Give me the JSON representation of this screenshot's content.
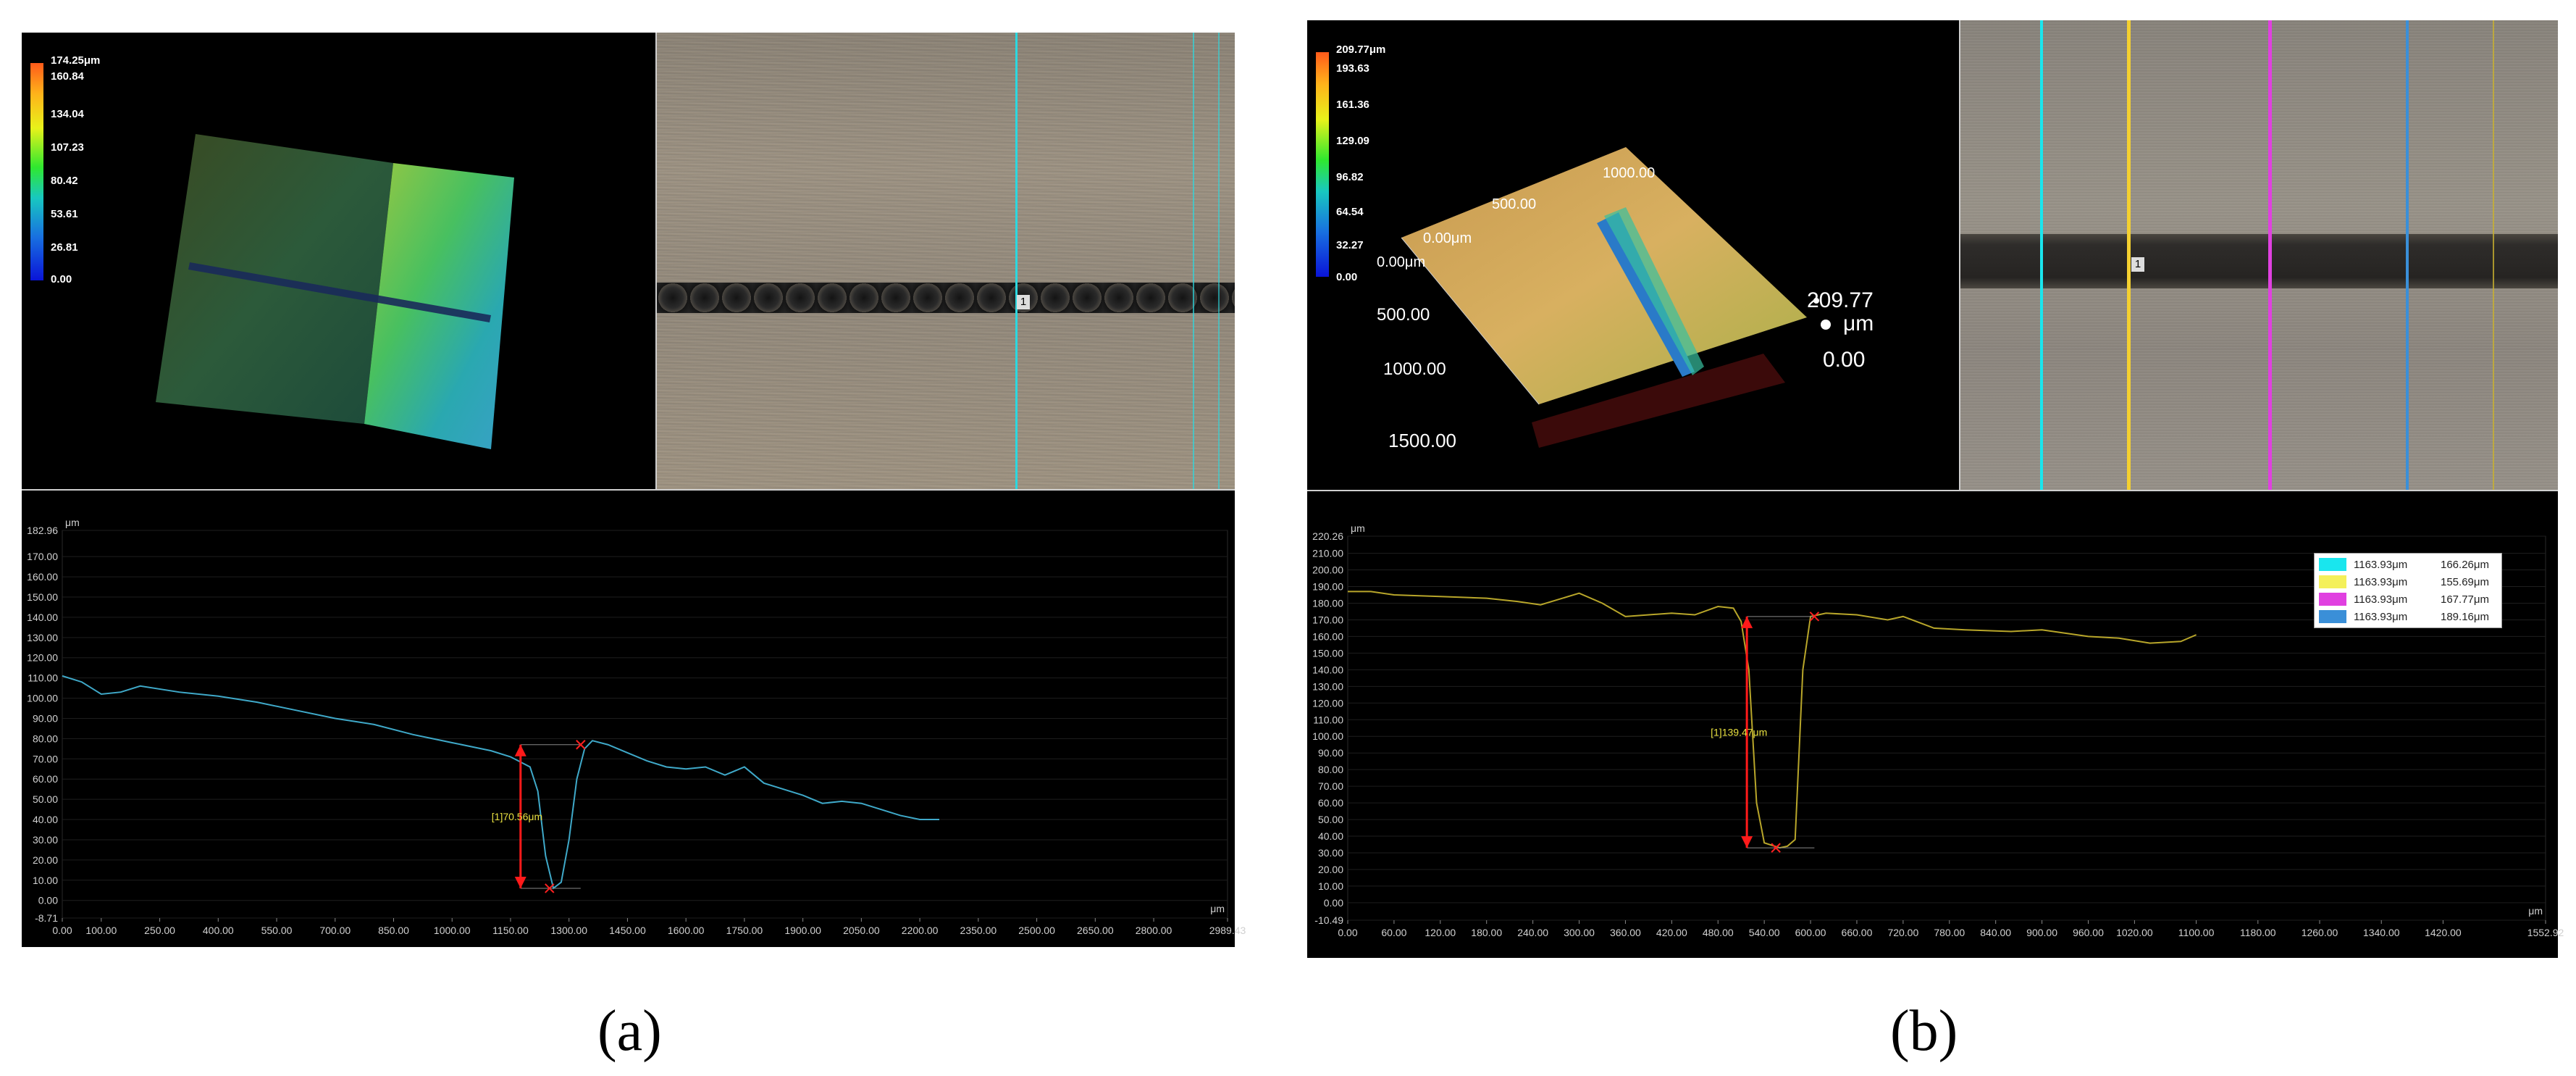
{
  "panel_a": {
    "caption": "(a)",
    "colorbar_ticks": [
      "174.25μm",
      "160.84",
      "134.04",
      "107.23",
      "80.42",
      "53.61",
      "26.81",
      "0.00"
    ],
    "marker_label": "1",
    "chart_data": {
      "type": "line",
      "xunit": "μm",
      "yunit": "μm",
      "xlim": [
        0,
        2989.43
      ],
      "ylim": [
        -8.71,
        182.96
      ],
      "xticks": [
        "0.00",
        "100.00",
        "250.00",
        "400.00",
        "550.00",
        "700.00",
        "850.00",
        "1000.00",
        "1150.00",
        "1300.00",
        "1450.00",
        "1600.00",
        "1750.00",
        "1900.00",
        "2050.00",
        "2200.00",
        "2350.00",
        "2500.00",
        "2650.00",
        "2800.00",
        "2989.43"
      ],
      "yticks": [
        "182.96",
        "170.00",
        "160.00",
        "150.00",
        "140.00",
        "130.00",
        "120.00",
        "110.00",
        "100.00",
        "90.00",
        "80.00",
        "70.00",
        "60.00",
        "50.00",
        "40.00",
        "30.00",
        "20.00",
        "10.00",
        "0.00",
        "-8.71"
      ],
      "series": [
        {
          "color": "#3fa9c9",
          "x": [
            0,
            50,
            100,
            150,
            200,
            300,
            400,
            500,
            600,
            700,
            800,
            900,
            1000,
            1100,
            1150,
            1180,
            1200,
            1220,
            1240,
            1260,
            1280,
            1300,
            1320,
            1340,
            1360,
            1400,
            1450,
            1500,
            1550,
            1600,
            1650,
            1700,
            1750,
            1800,
            1850,
            1900,
            1950,
            2000,
            2050,
            2100,
            2150,
            2200,
            2250
          ],
          "y": [
            111,
            108,
            102,
            103,
            106,
            103,
            101,
            98,
            94,
            90,
            87,
            82,
            78,
            74,
            71,
            68,
            66,
            54,
            22,
            6,
            9,
            30,
            60,
            75,
            79,
            77,
            73,
            69,
            66,
            65,
            66,
            62,
            66,
            58,
            55,
            52,
            48,
            49,
            48,
            45,
            42,
            40,
            40
          ]
        }
      ],
      "annotation": {
        "label": "[1]70.56μm",
        "x1": 1250,
        "y_low": 6,
        "x2": 1330,
        "y_high": 77
      }
    }
  },
  "panel_b": {
    "caption": "(b)",
    "colorbar_ticks": [
      "209.77μm",
      "193.63",
      "161.36",
      "129.09",
      "96.82",
      "64.54",
      "32.27",
      "0.00"
    ],
    "axis3d_labels": [
      "1000.00",
      "500.00",
      "0.00μm",
      "0.00μm",
      "500.00",
      "1000.00",
      "1500.00",
      "209.77",
      "μm",
      "0.00"
    ],
    "marker_label": "1",
    "legend": [
      {
        "color": "#19e6ee",
        "x": "1163.93μm",
        "y": "166.26μm"
      },
      {
        "color": "#f4f05a",
        "x": "1163.93μm",
        "y": "155.69μm"
      },
      {
        "color": "#e040e0",
        "x": "1163.93μm",
        "y": "167.77μm"
      },
      {
        "color": "#3a8fd8",
        "x": "1163.93μm",
        "y": "189.16μm"
      }
    ],
    "chart_data": {
      "type": "line",
      "xunit": "μm",
      "yunit": "μm",
      "xlim": [
        0,
        1552.92
      ],
      "ylim": [
        -10.49,
        220.26
      ],
      "xticks": [
        "0.00",
        "60.00",
        "120.00",
        "180.00",
        "240.00",
        "300.00",
        "360.00",
        "420.00",
        "480.00",
        "540.00",
        "600.00",
        "660.00",
        "720.00",
        "780.00",
        "840.00",
        "900.00",
        "960.00",
        "1020.00",
        "1100.00",
        "1180.00",
        "1260.00",
        "1340.00",
        "1420.00",
        "1552.92"
      ],
      "yticks": [
        "220.26",
        "210.00",
        "200.00",
        "190.00",
        "180.00",
        "170.00",
        "160.00",
        "150.00",
        "140.00",
        "130.00",
        "120.00",
        "110.00",
        "100.00",
        "90.00",
        "80.00",
        "70.00",
        "60.00",
        "50.00",
        "40.00",
        "30.00",
        "20.00",
        "10.00",
        "0.00",
        "-10.49"
      ],
      "series": [
        {
          "color": "#b8a62a",
          "x": [
            0,
            30,
            60,
            120,
            180,
            220,
            250,
            300,
            330,
            360,
            420,
            450,
            480,
            500,
            510,
            520,
            530,
            540,
            560,
            570,
            580,
            590,
            600,
            620,
            660,
            700,
            720,
            760,
            800,
            860,
            900,
            960,
            1000,
            1040,
            1080,
            1100
          ],
          "y": [
            187,
            187,
            185,
            184,
            183,
            181,
            179,
            186,
            180,
            172,
            174,
            173,
            178,
            177,
            169,
            140,
            60,
            36,
            33,
            34,
            38,
            140,
            172,
            174,
            173,
            170,
            172,
            165,
            164,
            163,
            164,
            160,
            159,
            156,
            157,
            161
          ]
        }
      ],
      "annotation": {
        "label": "[1]139.47μm",
        "x1": 555,
        "y_low": 33,
        "x2": 605,
        "y_high": 172
      }
    }
  }
}
